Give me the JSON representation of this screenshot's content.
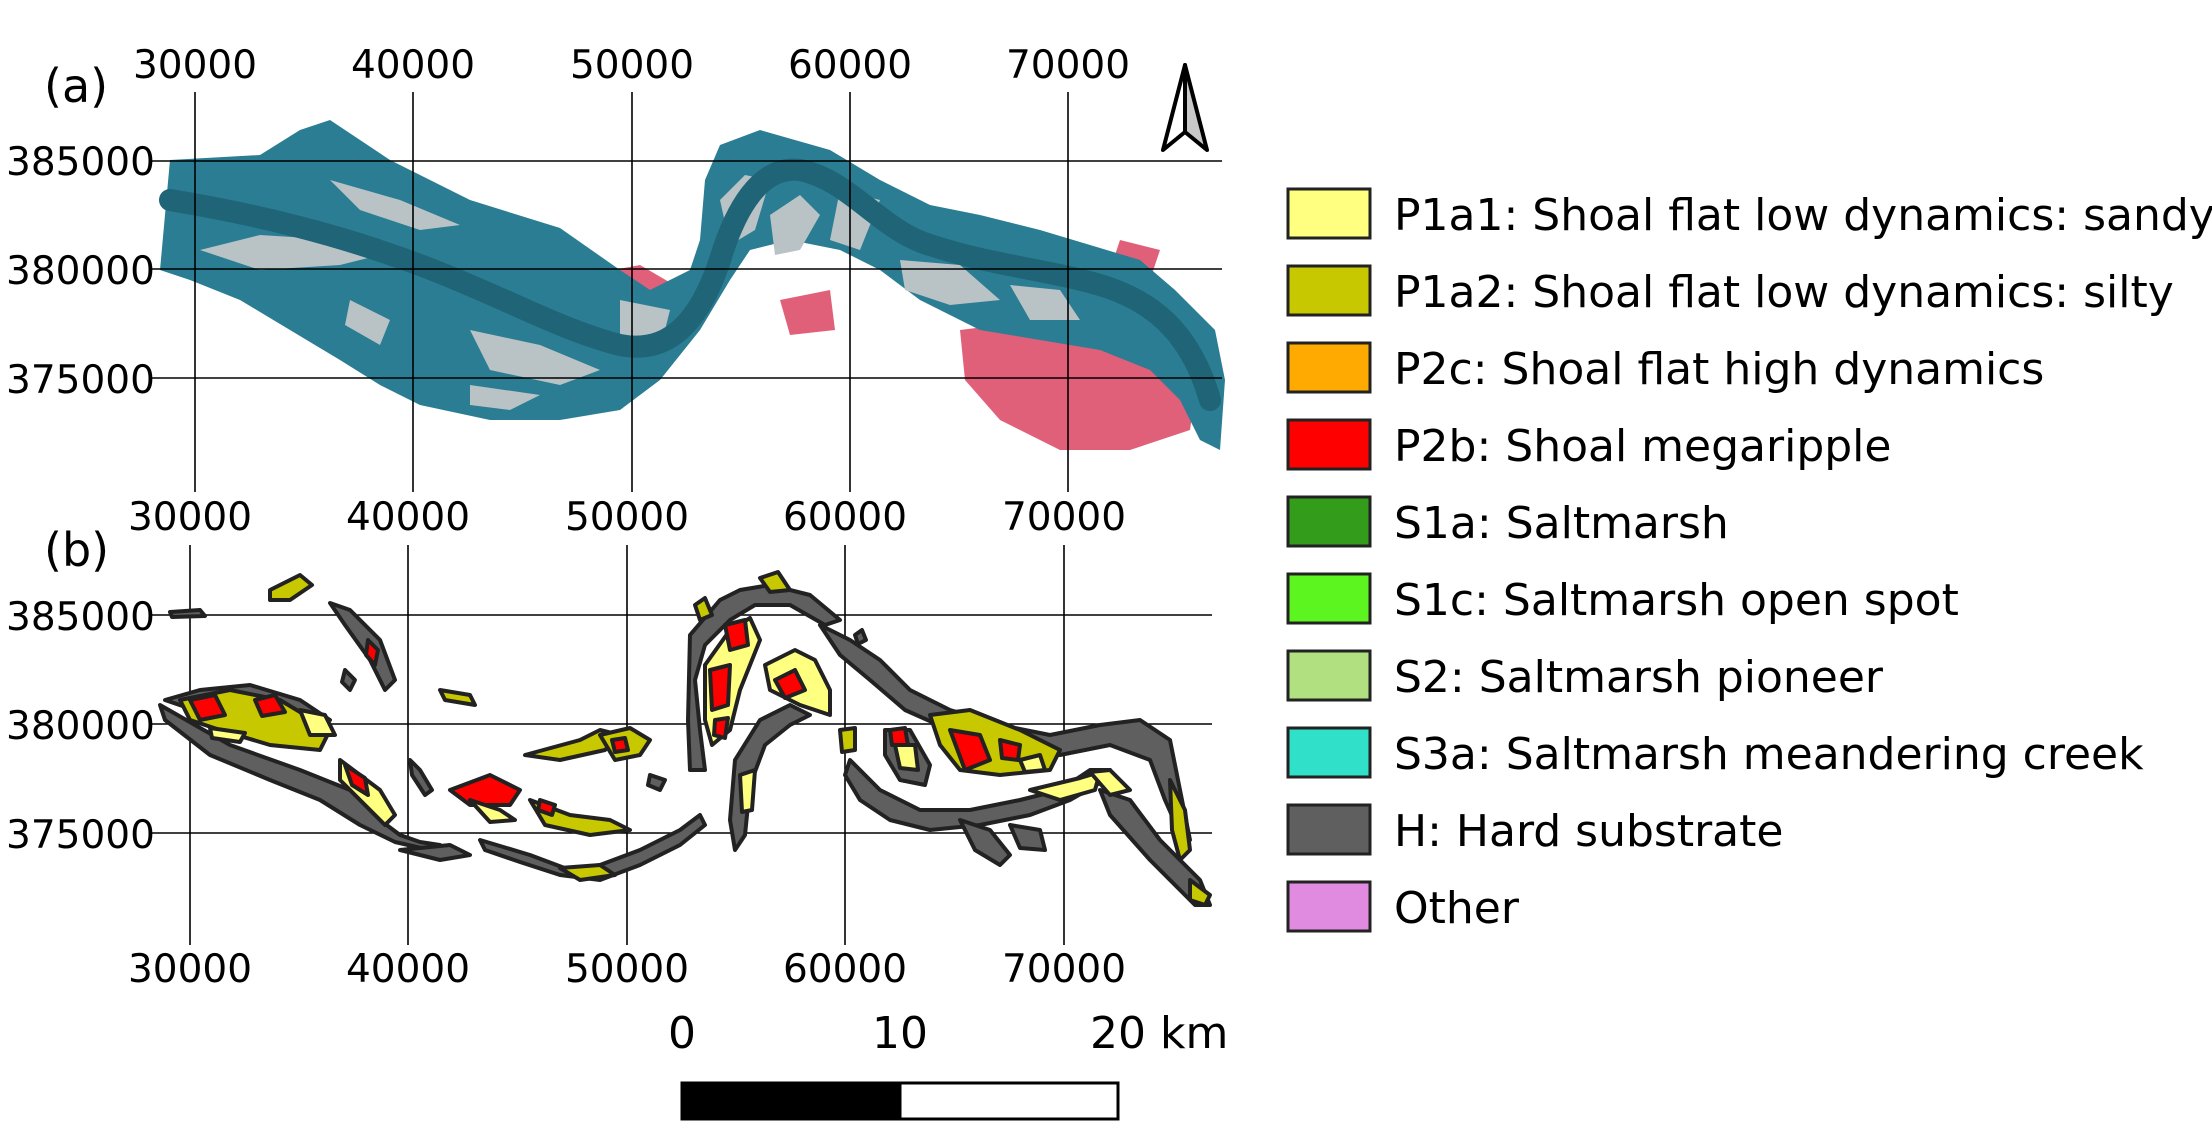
{
  "panels": [
    {
      "label": "(a)",
      "x_ticks": [
        "30000",
        "40000",
        "50000",
        "60000",
        "70000"
      ],
      "y_ticks": [
        "385000",
        "380000",
        "375000"
      ]
    },
    {
      "label": "(b)",
      "x_ticks_top": [
        "30000",
        "40000",
        "50000",
        "60000",
        "70000"
      ],
      "x_ticks_bottom": [
        "30000",
        "40000",
        "50000",
        "60000",
        "70000"
      ],
      "y_ticks": [
        "385000",
        "380000",
        "375000"
      ]
    }
  ],
  "north_arrow": {
    "icon": "north-arrow-icon"
  },
  "legend": [
    {
      "label": "P1a1: Shoal flat low dynamics: sandy",
      "color": "#ffff80"
    },
    {
      "label": "P1a2: Shoal flat low dynamics: silty",
      "color": "#c8c800"
    },
    {
      "label": "P2c: Shoal flat high dynamics",
      "color": "#ffaa00"
    },
    {
      "label": "P2b: Shoal megaripple",
      "color": "#ff0000"
    },
    {
      "label": "S1a: Saltmarsh",
      "color": "#339c1a"
    },
    {
      "label": "S1c: Saltmarsh open spot",
      "color": "#5cf51f"
    },
    {
      "label": "S2: Saltmarsh pioneer",
      "color": "#b0e080"
    },
    {
      "label": "S3a: Saltmarsh meandering creek",
      "color": "#30e0c8"
    },
    {
      "label": "H: Hard substrate",
      "color": "#5f5f5f"
    },
    {
      "label": "Other",
      "color": "#e08ae0"
    }
  ],
  "scale_bar": {
    "labels": [
      "0",
      "10",
      "20 km"
    ]
  },
  "colors": {
    "water": "#2a7d92",
    "water_dark": "#1f6477",
    "shoal_grey": "#b9c3c6",
    "marsh_pink": "#e0607a",
    "outline": "#222222"
  }
}
